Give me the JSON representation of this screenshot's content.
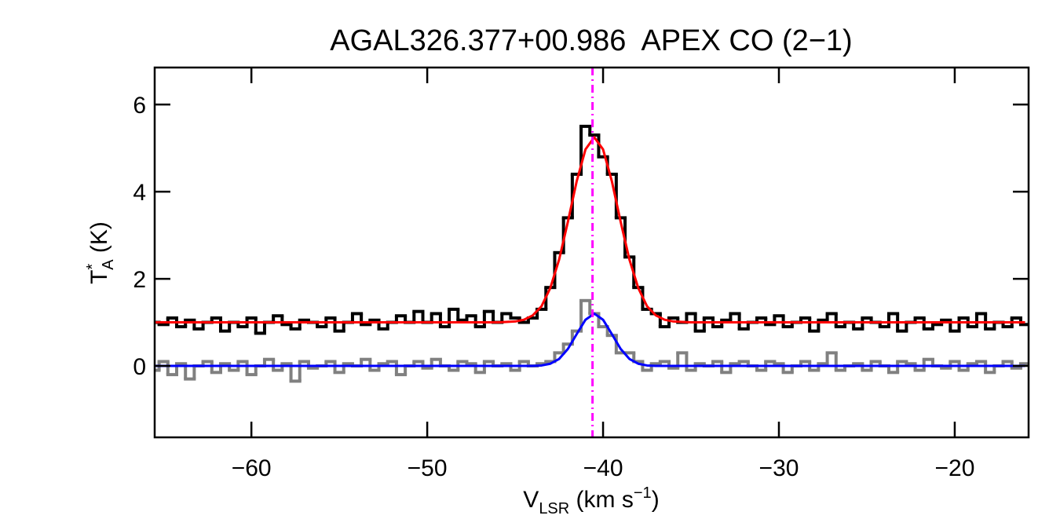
{
  "chart_data": {
    "type": "spectrum",
    "title": "AGAL326.377+00.986  APEX CO (2−1)",
    "x_label": {
      "main": "V",
      "sub": "LSR",
      "unit": " (km s",
      "sup": "−1",
      "close": ")"
    },
    "y_label": {
      "main": "T",
      "sup": "*",
      "sub": "A",
      "unit": " (K)"
    },
    "x": [
      -65.5,
      -65,
      -64.5,
      -64,
      -63.5,
      -63,
      -62.5,
      -62,
      -61.5,
      -61,
      -60.5,
      -60,
      -59.5,
      -59,
      -58.5,
      -58,
      -57.5,
      -57,
      -56.5,
      -56,
      -55.5,
      -55,
      -54.5,
      -54,
      -53.5,
      -53,
      -52.5,
      -52,
      -51.5,
      -51,
      -50.5,
      -50,
      -49.5,
      -49,
      -48.5,
      -48,
      -47.5,
      -47,
      -46.5,
      -46,
      -45.5,
      -45,
      -44.5,
      -44,
      -43.5,
      -43,
      -42.5,
      -42,
      -41.5,
      -41,
      -40.5,
      -40,
      -39.5,
      -39,
      -38.5,
      -38,
      -37.5,
      -37,
      -36.5,
      -36,
      -35.5,
      -35,
      -34.5,
      -34,
      -33.5,
      -33,
      -32.5,
      -32,
      -31.5,
      -31,
      -30.5,
      -30,
      -29.5,
      -29,
      -28.5,
      -28,
      -27.5,
      -27,
      -26.5,
      -26,
      -25.5,
      -25,
      -24.5,
      -24,
      -23.5,
      -23,
      -22.5,
      -22,
      -21.5,
      -21,
      -20.5,
      -20,
      -19.5,
      -19,
      -18.5,
      -18,
      -17.5,
      -17,
      -16.5,
      -16
    ],
    "series": [
      {
        "style": "step",
        "color": "#000000",
        "values": [
          1.0,
          0.95,
          1.1,
          0.9,
          1.05,
          0.85,
          1.0,
          1.1,
          0.8,
          1.0,
          0.9,
          1.1,
          0.75,
          1.0,
          1.15,
          0.95,
          0.85,
          1.05,
          1.0,
          0.9,
          1.1,
          0.8,
          1.0,
          1.2,
          0.95,
          1.05,
          0.85,
          1.0,
          1.15,
          1.0,
          1.25,
          1.0,
          1.2,
          0.9,
          1.3,
          1.05,
          1.15,
          0.9,
          1.25,
          1.0,
          1.2,
          1.1,
          1.0,
          1.1,
          1.3,
          1.8,
          2.6,
          3.4,
          4.4,
          5.5,
          5.3,
          4.8,
          4.4,
          3.4,
          2.5,
          1.8,
          1.3,
          1.2,
          0.9,
          1.1,
          1.0,
          1.2,
          0.8,
          1.1,
          0.9,
          1.05,
          1.2,
          0.85,
          1.0,
          1.1,
          0.95,
          1.15,
          0.9,
          1.0,
          1.1,
          0.8,
          1.05,
          1.2,
          0.9,
          1.0,
          0.85,
          1.1,
          1.0,
          0.9,
          1.2,
          0.8,
          1.0,
          1.1,
          0.85,
          0.95,
          1.05,
          0.8,
          1.1,
          0.9,
          1.2,
          0.85,
          1.0,
          0.9,
          1.1,
          0.95
        ]
      },
      {
        "style": "step",
        "color": "#808080",
        "values": [
          -0.1,
          0.1,
          -0.2,
          0.05,
          -0.3,
          0.0,
          0.1,
          -0.15,
          0.05,
          -0.1,
          0.1,
          -0.2,
          0.0,
          0.15,
          -0.1,
          0.05,
          -0.35,
          0.1,
          -0.05,
          0.0,
          0.1,
          -0.15,
          0.05,
          0.0,
          0.15,
          -0.1,
          0.05,
          0.1,
          -0.2,
          0.0,
          0.1,
          -0.05,
          0.15,
          0.0,
          -0.1,
          0.1,
          0.05,
          -0.15,
          0.1,
          0.0,
          0.05,
          -0.1,
          0.1,
          0.0,
          0.05,
          0.1,
          0.3,
          0.5,
          0.8,
          1.5,
          1.2,
          0.9,
          0.7,
          0.3,
          0.3,
          0.1,
          -0.1,
          0.05,
          0.1,
          -0.05,
          0.3,
          -0.1,
          0.05,
          0.0,
          0.1,
          -0.15,
          0.05,
          0.1,
          0.0,
          -0.1,
          0.1,
          0.05,
          -0.15,
          0.0,
          0.1,
          -0.1,
          0.05,
          0.3,
          -0.1,
          0.0,
          0.05,
          -0.1,
          0.1,
          0.0,
          -0.15,
          0.1,
          0.05,
          -0.1,
          0.15,
          0.0,
          -0.05,
          0.1,
          -0.1,
          0.05,
          0.1,
          -0.15,
          0.0,
          0.1,
          -0.05,
          0.05
        ]
      },
      {
        "style": "line",
        "color": "#ff0000",
        "values": [
          1.0,
          1.0,
          1.0,
          1.0,
          1.0,
          1.0,
          1.0,
          1.0,
          1.0,
          1.0,
          1.0,
          1.0,
          1.0,
          1.0,
          1.0,
          1.0,
          1.0,
          1.0,
          1.0,
          1.0,
          1.0,
          1.0,
          1.0,
          1.0,
          1.0,
          1.0,
          1.0,
          1.0,
          1.0,
          1.0,
          1.0,
          1.0,
          1.0,
          1.0,
          1.0,
          1.0,
          1.0,
          1.0,
          1.0,
          1.0,
          1.01,
          1.02,
          1.06,
          1.16,
          1.37,
          1.79,
          2.44,
          3.31,
          4.24,
          4.97,
          5.25,
          4.97,
          4.24,
          3.31,
          2.44,
          1.79,
          1.37,
          1.16,
          1.06,
          1.02,
          1.01,
          1.0,
          1.0,
          1.0,
          1.0,
          1.0,
          1.0,
          1.0,
          1.0,
          1.0,
          1.0,
          1.0,
          1.0,
          1.0,
          1.0,
          1.0,
          1.0,
          1.0,
          1.0,
          1.0,
          1.0,
          1.0,
          1.0,
          1.0,
          1.0,
          1.0,
          1.0,
          1.0,
          1.0,
          1.0,
          1.0,
          1.0,
          1.0,
          1.0,
          1.0,
          1.0,
          1.0,
          1.0,
          1.0,
          1.0
        ]
      },
      {
        "style": "line",
        "color": "#0000ff",
        "values": [
          0,
          0,
          0,
          0,
          0,
          0,
          0,
          0,
          0,
          0,
          0,
          0,
          0,
          0,
          0,
          0,
          0,
          0,
          0,
          0,
          0,
          0,
          0,
          0,
          0,
          0,
          0,
          0,
          0,
          0,
          0,
          0,
          0,
          0,
          0,
          0,
          0,
          0,
          0,
          0,
          0,
          0,
          0,
          0,
          0.01,
          0.05,
          0.16,
          0.39,
          0.73,
          1.06,
          1.2,
          1.06,
          0.73,
          0.39,
          0.16,
          0.05,
          0.01,
          0,
          0,
          0,
          0,
          0,
          0,
          0,
          0,
          0,
          0,
          0,
          0,
          0,
          0,
          0,
          0,
          0,
          0,
          0,
          0,
          0,
          0,
          0,
          0,
          0,
          0,
          0,
          0,
          0,
          0,
          0,
          0,
          0,
          0,
          0,
          0,
          0,
          0,
          0,
          0,
          0,
          0,
          0
        ]
      }
    ],
    "channel_width": 0.5,
    "vline": {
      "value": -40.6,
      "color": "#ff00ff"
    },
    "xlim": [
      -65.5,
      -15.8
    ],
    "ylim": [
      -1.64,
      6.85
    ],
    "xticks": [
      {
        "value": -60,
        "label": "−60"
      },
      {
        "value": -50,
        "label": "−50"
      },
      {
        "value": -40,
        "label": "−40"
      },
      {
        "value": -30,
        "label": "−30"
      },
      {
        "value": -20,
        "label": "−20"
      }
    ],
    "yticks": [
      0,
      2,
      4,
      6
    ],
    "grid": false
  }
}
